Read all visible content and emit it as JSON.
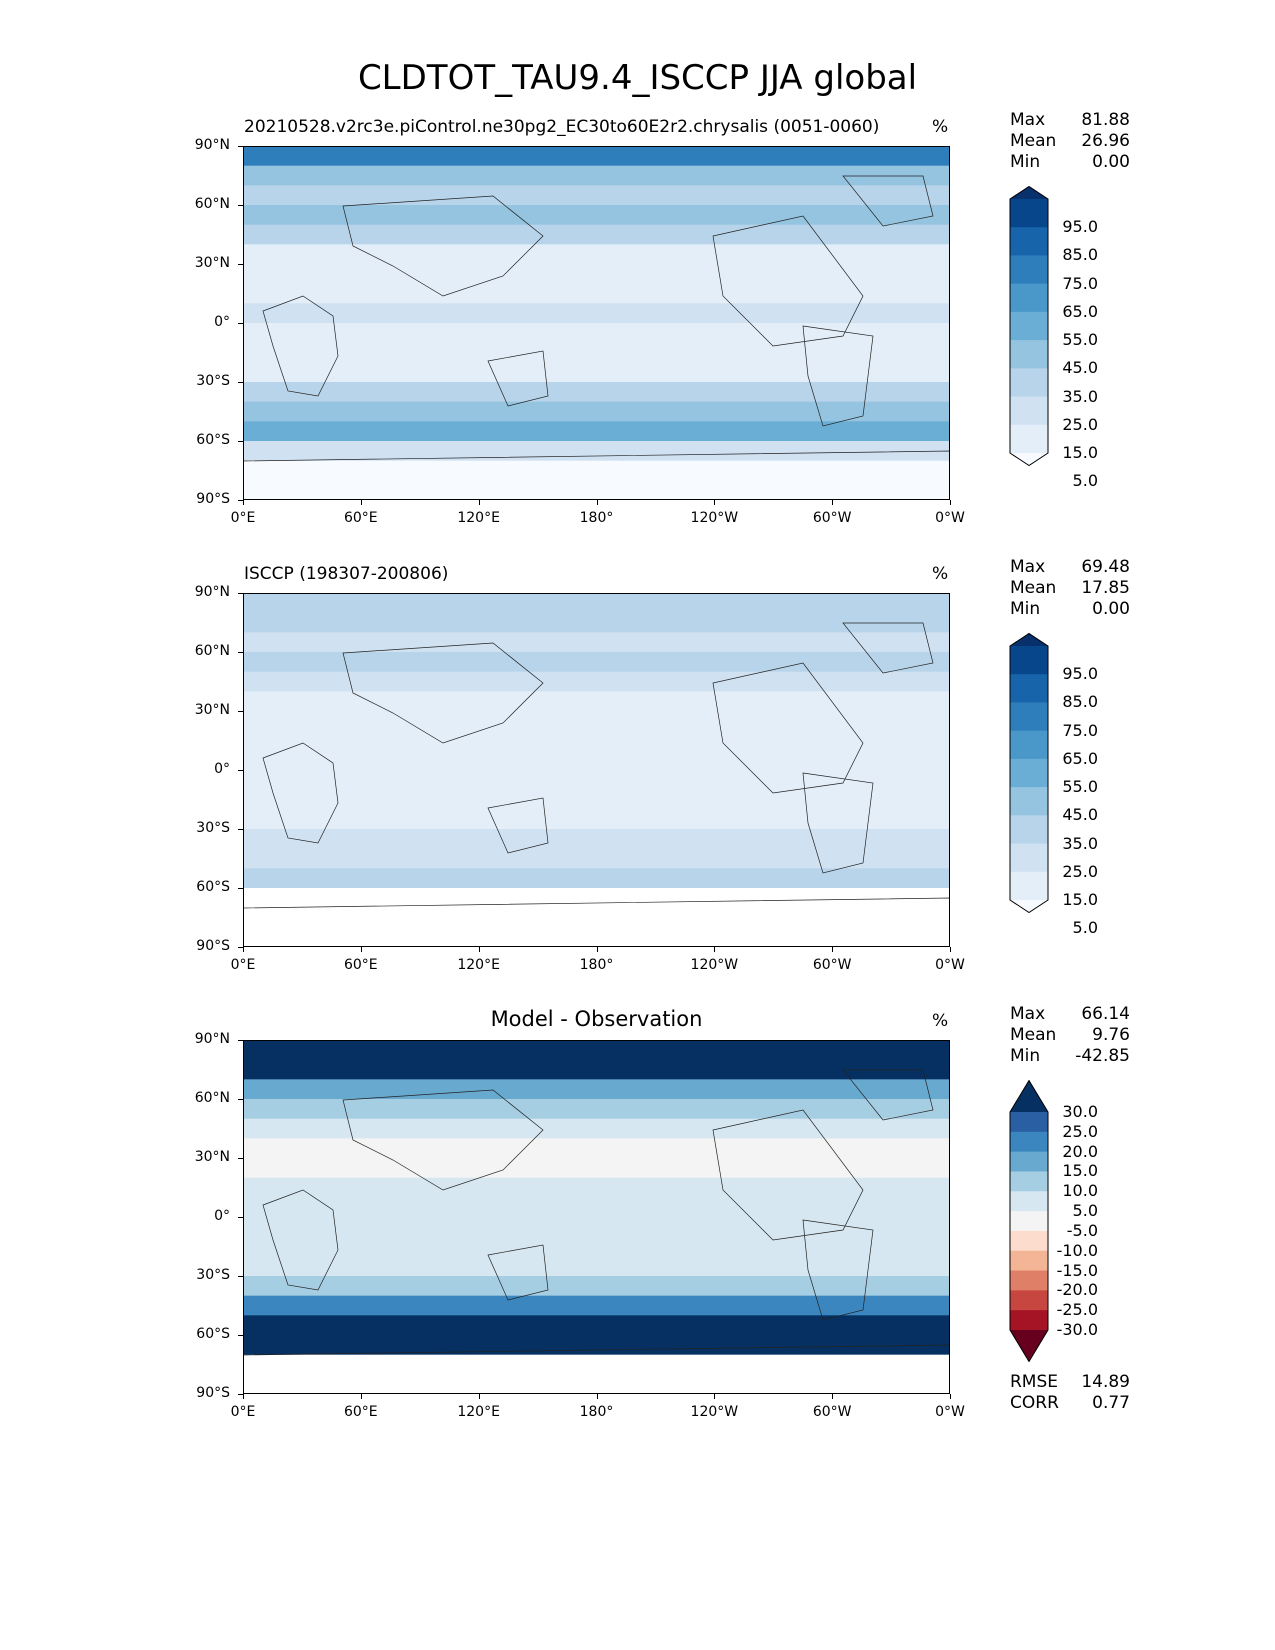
{
  "figure_title": "CLDTOT_TAU9.4_ISCCP JJA global",
  "chart_data": [
    {
      "type": "heatmap",
      "panel": "test",
      "title_left": "20210528.v2rc3e.piControl.ne30pg2_EC30to60E2r2.chrysalis (0051-0060)",
      "title_center": "",
      "units": "%",
      "stats": [
        {
          "label": "Max",
          "value": "81.88"
        },
        {
          "label": "Mean",
          "value": "26.96"
        },
        {
          "label": "Min",
          "value": "0.00"
        }
      ],
      "colorbar_ticks": [
        "95.0",
        "85.0",
        "75.0",
        "65.0",
        "55.0",
        "45.0",
        "35.0",
        "25.0",
        "15.0",
        "5.0"
      ],
      "colors": [
        "#08306b",
        "#08468c",
        "#1764ab",
        "#2e7ebc",
        "#4a98c9",
        "#6aaed6",
        "#94c4df",
        "#b7d4ea",
        "#d0e1f2",
        "#e3eef9",
        "#f7fbff",
        "#ffffff"
      ],
      "zonal_mean_approx": [
        75,
        45,
        40,
        45,
        35,
        20,
        15,
        20,
        25,
        20,
        15,
        20,
        35,
        50,
        55,
        30,
        3,
        3
      ],
      "extra_stats": []
    },
    {
      "type": "heatmap",
      "panel": "reference",
      "title_left": "ISCCP (198307-200806)",
      "title_center": "",
      "units": "%",
      "stats": [
        {
          "label": "Max",
          "value": "69.48"
        },
        {
          "label": "Mean",
          "value": "17.85"
        },
        {
          "label": "Min",
          "value": "0.00"
        }
      ],
      "colorbar_ticks": [
        "95.0",
        "85.0",
        "75.0",
        "65.0",
        "55.0",
        "45.0",
        "35.0",
        "25.0",
        "15.0",
        "5.0"
      ],
      "colors": [
        "#08306b",
        "#08468c",
        "#1764ab",
        "#2e7ebc",
        "#4a98c9",
        "#6aaed6",
        "#94c4df",
        "#b7d4ea",
        "#d0e1f2",
        "#e3eef9",
        "#f7fbff",
        "#ffffff"
      ],
      "zonal_mean_approx": [
        40,
        35,
        30,
        35,
        30,
        20,
        15,
        20,
        20,
        15,
        15,
        20,
        25,
        30,
        40,
        -1,
        -1,
        -1
      ],
      "extra_stats": []
    },
    {
      "type": "heatmap",
      "panel": "difference",
      "title_left": "",
      "title_center": "Model - Observation",
      "units": "%",
      "stats": [
        {
          "label": "Max",
          "value": "66.14"
        },
        {
          "label": "Mean",
          "value": "9.76"
        },
        {
          "label": "Min",
          "value": "-42.85"
        }
      ],
      "colorbar_ticks": [
        "30.0",
        "25.0",
        "20.0",
        "15.0",
        "10.0",
        "5.0",
        "-5.0",
        "-10.0",
        "-15.0",
        "-20.0",
        "-25.0",
        "-30.0"
      ],
      "colors": [
        "#053061",
        "#2a5fa3",
        "#3b86bf",
        "#67a9cf",
        "#a6cee3",
        "#d6e7f1",
        "#f4f4f4",
        "#fbdccd",
        "#f4b496",
        "#e07f67",
        "#c74740",
        "#a51425",
        "#67001f"
      ],
      "zonal_mean_approx": [
        35,
        30,
        15,
        10,
        5,
        0,
        0,
        5,
        5,
        5,
        5,
        5,
        10,
        20,
        30,
        35,
        -99,
        -99
      ],
      "extra_stats": [
        {
          "label": "RMSE",
          "value": "14.89"
        },
        {
          "label": "CORR",
          "value": "0.77"
        }
      ]
    }
  ],
  "axes": {
    "lat_ticks": [
      "90°N",
      "60°N",
      "30°N",
      "0°",
      "30°S",
      "60°S",
      "90°S"
    ],
    "lon_ticks": [
      "0°E",
      "60°E",
      "120°E",
      "180°",
      "120°W",
      "60°W",
      "0°W"
    ]
  }
}
